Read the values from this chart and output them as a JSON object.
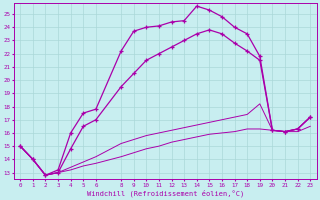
{
  "xlabel": "Windchill (Refroidissement éolien,°C)",
  "background_color": "#c8eef0",
  "grid_color": "#aad8d8",
  "line_color": "#aa00aa",
  "x_ticks": [
    0,
    1,
    2,
    3,
    4,
    5,
    6,
    8,
    9,
    10,
    11,
    12,
    13,
    14,
    15,
    16,
    17,
    18,
    19,
    20,
    21,
    22,
    23
  ],
  "ylim": [
    12.5,
    25.8
  ],
  "xlim": [
    -0.5,
    23.5
  ],
  "line1_x": [
    0,
    1,
    2,
    3,
    4,
    5,
    6,
    8,
    9,
    10,
    11,
    12,
    13,
    14,
    15,
    16,
    17,
    18,
    19,
    20,
    21,
    22,
    23
  ],
  "line1_y": [
    15.0,
    14.0,
    12.8,
    13.2,
    16.0,
    17.5,
    17.8,
    22.2,
    23.7,
    24.0,
    24.1,
    24.4,
    24.5,
    25.6,
    25.3,
    24.8,
    24.0,
    23.5,
    21.8,
    16.2,
    16.1,
    16.3,
    17.2
  ],
  "line2_x": [
    0,
    1,
    2,
    3,
    4,
    5,
    6,
    8,
    9,
    10,
    11,
    12,
    13,
    14,
    15,
    16,
    17,
    18,
    19,
    20,
    21,
    22,
    23
  ],
  "line2_y": [
    15.0,
    14.0,
    12.8,
    13.0,
    14.8,
    16.5,
    17.0,
    19.5,
    20.5,
    21.5,
    22.0,
    22.5,
    23.0,
    23.5,
    23.8,
    23.5,
    22.8,
    22.2,
    21.5,
    16.2,
    16.1,
    16.3,
    17.2
  ],
  "line3_x": [
    0,
    1,
    2,
    3,
    4,
    5,
    6,
    8,
    9,
    10,
    11,
    12,
    13,
    14,
    15,
    16,
    17,
    18,
    19,
    20,
    21,
    22,
    23
  ],
  "line3_y": [
    15.0,
    14.0,
    12.8,
    13.0,
    13.4,
    13.8,
    14.2,
    15.2,
    15.5,
    15.8,
    16.0,
    16.2,
    16.4,
    16.6,
    16.8,
    17.0,
    17.2,
    17.4,
    18.2,
    16.2,
    16.1,
    16.3,
    17.2
  ],
  "line4_x": [
    0,
    1,
    2,
    3,
    4,
    5,
    6,
    8,
    9,
    10,
    11,
    12,
    13,
    14,
    15,
    16,
    17,
    18,
    19,
    20,
    21,
    22,
    23
  ],
  "line4_y": [
    15.0,
    14.0,
    12.8,
    13.0,
    13.2,
    13.5,
    13.7,
    14.2,
    14.5,
    14.8,
    15.0,
    15.3,
    15.5,
    15.7,
    15.9,
    16.0,
    16.1,
    16.3,
    16.3,
    16.2,
    16.1,
    16.1,
    16.5
  ]
}
